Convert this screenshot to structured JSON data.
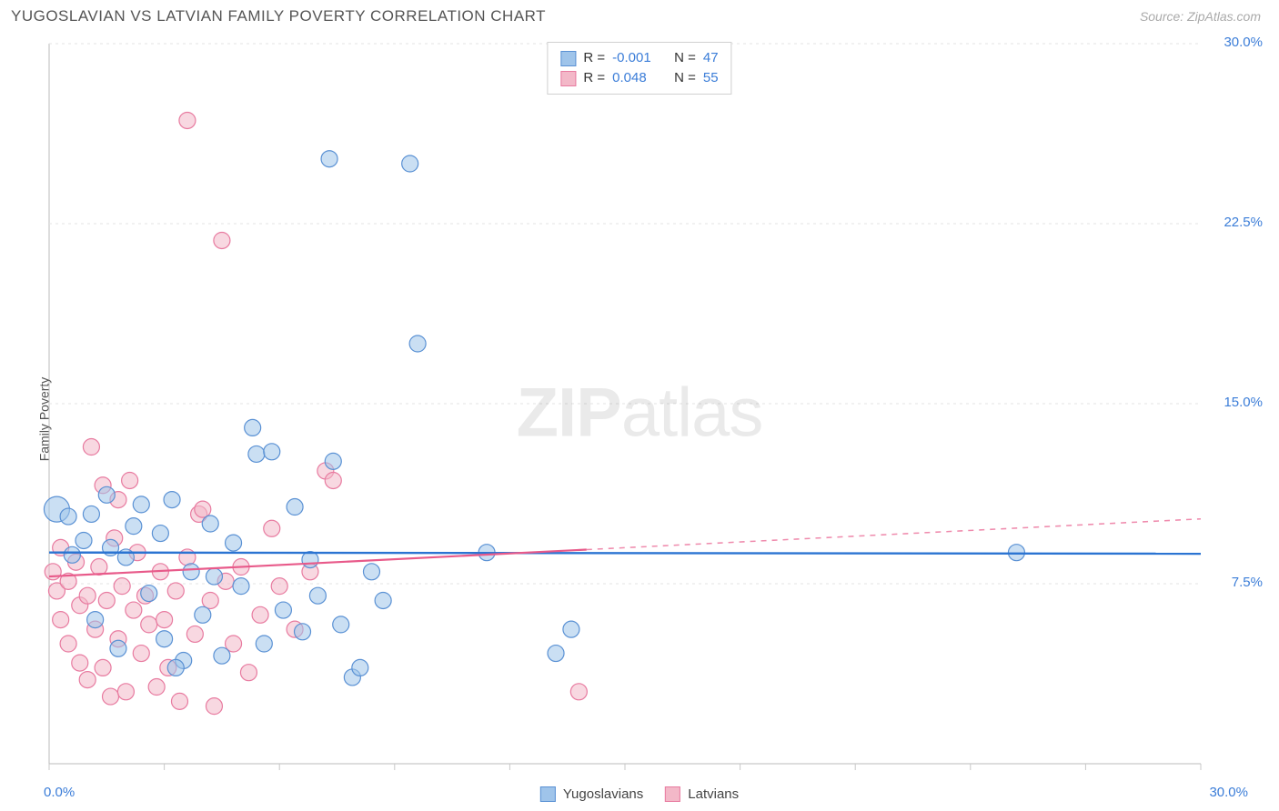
{
  "header": {
    "title": "YUGOSLAVIAN VS LATVIAN FAMILY POVERTY CORRELATION CHART",
    "source": "Source: ZipAtlas.com"
  },
  "watermark": {
    "zip": "ZIP",
    "atlas": "atlas"
  },
  "chart": {
    "type": "scatter",
    "ylabel": "Family Poverty",
    "background_color": "#ffffff",
    "grid_color": "#e3e3e3",
    "axis_color": "#cccccc",
    "x": {
      "min": 0,
      "max": 30,
      "start_label": "0.0%",
      "end_label": "30.0%",
      "ticks": [
        0,
        3,
        6,
        9,
        12,
        15,
        18,
        21,
        24,
        27,
        30
      ]
    },
    "y": {
      "min": 0,
      "max": 30,
      "ticks": [
        7.5,
        15.0,
        22.5,
        30.0
      ],
      "tick_labels": [
        "7.5%",
        "15.0%",
        "22.5%",
        "30.0%"
      ]
    },
    "series": [
      {
        "name": "Yugoslavians",
        "fill": "#9fc4ea",
        "stroke": "#5a91d4",
        "fill_opacity": 0.55,
        "marker_r": 9,
        "stat_R": "-0.001",
        "stat_N": "47",
        "trend": {
          "y_start": 8.8,
          "y_end": 8.75,
          "stroke": "#2b74d2",
          "width": 2.4,
          "solid_to_x": 30
        },
        "points": [
          {
            "x": 0.2,
            "y": 10.6,
            "r": 14
          },
          {
            "x": 0.5,
            "y": 10.3
          },
          {
            "x": 0.6,
            "y": 8.7
          },
          {
            "x": 0.9,
            "y": 9.3
          },
          {
            "x": 1.1,
            "y": 10.4
          },
          {
            "x": 1.2,
            "y": 6.0
          },
          {
            "x": 1.5,
            "y": 11.2
          },
          {
            "x": 1.6,
            "y": 9.0
          },
          {
            "x": 1.8,
            "y": 4.8
          },
          {
            "x": 2.0,
            "y": 8.6
          },
          {
            "x": 2.2,
            "y": 9.9
          },
          {
            "x": 2.4,
            "y": 10.8
          },
          {
            "x": 2.6,
            "y": 7.1
          },
          {
            "x": 2.9,
            "y": 9.6
          },
          {
            "x": 3.0,
            "y": 5.2
          },
          {
            "x": 3.2,
            "y": 11.0
          },
          {
            "x": 3.5,
            "y": 4.3
          },
          {
            "x": 3.7,
            "y": 8.0
          },
          {
            "x": 4.0,
            "y": 6.2
          },
          {
            "x": 4.2,
            "y": 10.0
          },
          {
            "x": 4.5,
            "y": 4.5
          },
          {
            "x": 4.8,
            "y": 9.2
          },
          {
            "x": 5.0,
            "y": 7.4
          },
          {
            "x": 5.3,
            "y": 14.0
          },
          {
            "x": 5.4,
            "y": 12.9
          },
          {
            "x": 5.6,
            "y": 5.0
          },
          {
            "x": 5.8,
            "y": 13.0
          },
          {
            "x": 6.1,
            "y": 6.4
          },
          {
            "x": 6.4,
            "y": 10.7
          },
          {
            "x": 6.6,
            "y": 5.5
          },
          {
            "x": 6.8,
            "y": 8.5
          },
          {
            "x": 7.0,
            "y": 7.0
          },
          {
            "x": 7.3,
            "y": 25.2
          },
          {
            "x": 7.4,
            "y": 12.6
          },
          {
            "x": 7.6,
            "y": 5.8
          },
          {
            "x": 7.9,
            "y": 3.6
          },
          {
            "x": 8.1,
            "y": 4.0
          },
          {
            "x": 8.4,
            "y": 8.0
          },
          {
            "x": 8.7,
            "y": 6.8
          },
          {
            "x": 9.4,
            "y": 25.0
          },
          {
            "x": 9.6,
            "y": 17.5
          },
          {
            "x": 11.4,
            "y": 8.8
          },
          {
            "x": 13.2,
            "y": 4.6
          },
          {
            "x": 13.6,
            "y": 5.6
          },
          {
            "x": 25.2,
            "y": 8.8
          },
          {
            "x": 3.3,
            "y": 4.0
          },
          {
            "x": 4.3,
            "y": 7.8
          }
        ]
      },
      {
        "name": "Latvians",
        "fill": "#f3b8c8",
        "stroke": "#e87ba0",
        "fill_opacity": 0.55,
        "marker_r": 9,
        "stat_R": "0.048",
        "stat_N": "55",
        "trend": {
          "y_start": 7.8,
          "y_end": 10.2,
          "stroke": "#e85a8a",
          "width": 2.2,
          "solid_to_x": 14
        },
        "points": [
          {
            "x": 0.1,
            "y": 8.0
          },
          {
            "x": 0.2,
            "y": 7.2
          },
          {
            "x": 0.3,
            "y": 9.0
          },
          {
            "x": 0.3,
            "y": 6.0
          },
          {
            "x": 0.5,
            "y": 7.6
          },
          {
            "x": 0.5,
            "y": 5.0
          },
          {
            "x": 0.7,
            "y": 8.4
          },
          {
            "x": 0.8,
            "y": 6.6
          },
          {
            "x": 0.8,
            "y": 4.2
          },
          {
            "x": 1.0,
            "y": 7.0
          },
          {
            "x": 1.0,
            "y": 3.5
          },
          {
            "x": 1.1,
            "y": 13.2
          },
          {
            "x": 1.2,
            "y": 5.6
          },
          {
            "x": 1.3,
            "y": 8.2
          },
          {
            "x": 1.4,
            "y": 11.6
          },
          {
            "x": 1.4,
            "y": 4.0
          },
          {
            "x": 1.5,
            "y": 6.8
          },
          {
            "x": 1.6,
            "y": 2.8
          },
          {
            "x": 1.7,
            "y": 9.4
          },
          {
            "x": 1.8,
            "y": 11.0
          },
          {
            "x": 1.8,
            "y": 5.2
          },
          {
            "x": 1.9,
            "y": 7.4
          },
          {
            "x": 2.0,
            "y": 3.0
          },
          {
            "x": 2.1,
            "y": 11.8
          },
          {
            "x": 2.2,
            "y": 6.4
          },
          {
            "x": 2.3,
            "y": 8.8
          },
          {
            "x": 2.4,
            "y": 4.6
          },
          {
            "x": 2.5,
            "y": 7.0
          },
          {
            "x": 2.6,
            "y": 5.8
          },
          {
            "x": 2.8,
            "y": 3.2
          },
          {
            "x": 2.9,
            "y": 8.0
          },
          {
            "x": 3.0,
            "y": 6.0
          },
          {
            "x": 3.1,
            "y": 4.0
          },
          {
            "x": 3.3,
            "y": 7.2
          },
          {
            "x": 3.4,
            "y": 2.6
          },
          {
            "x": 3.6,
            "y": 8.6
          },
          {
            "x": 3.6,
            "y": 26.8
          },
          {
            "x": 3.8,
            "y": 5.4
          },
          {
            "x": 3.9,
            "y": 10.4
          },
          {
            "x": 4.0,
            "y": 10.6
          },
          {
            "x": 4.2,
            "y": 6.8
          },
          {
            "x": 4.3,
            "y": 2.4
          },
          {
            "x": 4.5,
            "y": 21.8
          },
          {
            "x": 4.6,
            "y": 7.6
          },
          {
            "x": 4.8,
            "y": 5.0
          },
          {
            "x": 5.0,
            "y": 8.2
          },
          {
            "x": 5.2,
            "y": 3.8
          },
          {
            "x": 5.5,
            "y": 6.2
          },
          {
            "x": 5.8,
            "y": 9.8
          },
          {
            "x": 6.0,
            "y": 7.4
          },
          {
            "x": 6.4,
            "y": 5.6
          },
          {
            "x": 6.8,
            "y": 8.0
          },
          {
            "x": 7.2,
            "y": 12.2
          },
          {
            "x": 7.4,
            "y": 11.8
          },
          {
            "x": 13.8,
            "y": 3.0
          }
        ]
      }
    ]
  }
}
